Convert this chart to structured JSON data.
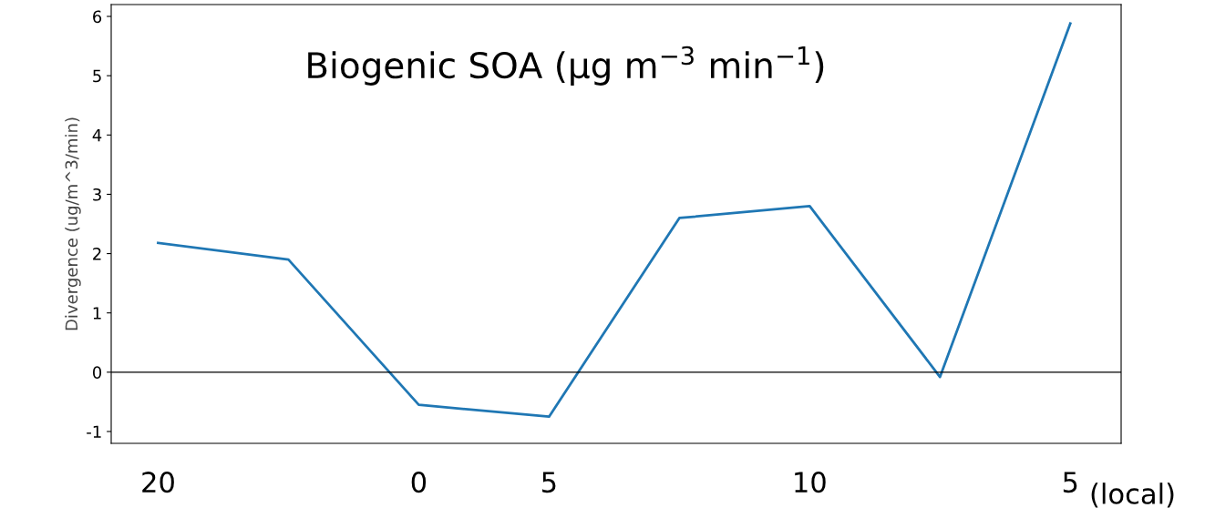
{
  "chart_data": {
    "type": "line",
    "title": "Biogenic SOA (μg m$^{−3}$ min$^{−1}$)",
    "ylabel": "Divergence (ug/m^3/min)",
    "xlabel": "(local)",
    "categories": [
      "20",
      null,
      "0",
      "5",
      null,
      "10",
      null,
      "5"
    ],
    "series": [
      {
        "color": "#1f77b4",
        "values": [
          2.18,
          1.9,
          -0.55,
          -0.75,
          2.6,
          2.8,
          -0.08,
          5.88
        ]
      }
    ],
    "ylim": [
      -1.2,
      6.2
    ],
    "yticks": [
      -1,
      0,
      1,
      2,
      3,
      4,
      5,
      6
    ],
    "ref_lines": [
      {
        "axis": "y",
        "value": 0,
        "color": "#000000"
      }
    ],
    "grid": false,
    "legend": false,
    "marker": "none",
    "line_style": "solid"
  }
}
